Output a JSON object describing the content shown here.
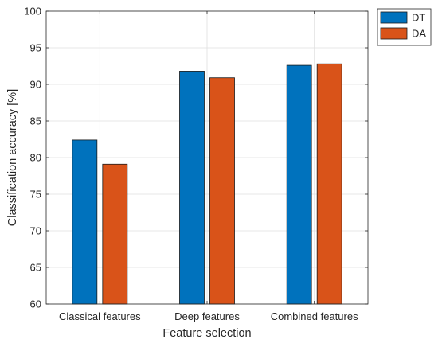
{
  "chart_data": {
    "type": "bar",
    "categories": [
      "Classical features",
      "Deep features",
      "Combined features"
    ],
    "series": [
      {
        "name": "DT",
        "values": [
          82.4,
          91.8,
          92.6
        ],
        "color": "#0072BD"
      },
      {
        "name": "DA",
        "values": [
          79.1,
          90.9,
          92.8
        ],
        "color": "#D95319"
      }
    ],
    "title": "",
    "xlabel": "Feature selection",
    "ylabel": "Classification accuracy [%]",
    "ylim": [
      60,
      100
    ],
    "yticks": [
      "60",
      "65",
      "70",
      "75",
      "80",
      "85",
      "90",
      "95",
      "100"
    ],
    "grid": true,
    "legend_position": "outside-top-right"
  }
}
